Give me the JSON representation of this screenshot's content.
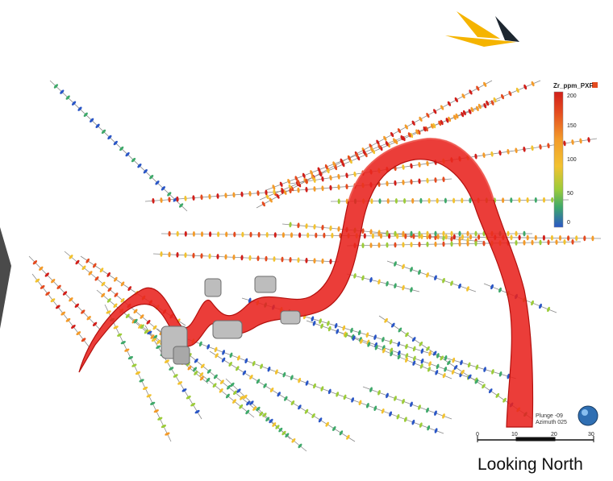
{
  "legend": {
    "title": "Zr_ppm_PXF",
    "ticks": [
      "200",
      "150",
      "100",
      "50",
      "0"
    ],
    "colors": [
      "#2a56c6",
      "#3fa96a",
      "#9ccc3a",
      "#f2c230",
      "#f39b2a",
      "#e44b1f",
      "#d11f1a"
    ]
  },
  "orientation": {
    "plunge": "Plunge -09",
    "azimuth": "Azimuth 025"
  },
  "scale_bar": {
    "labels": [
      "0",
      "10",
      "20",
      "30"
    ]
  },
  "caption": "Looking North",
  "colors": {
    "ribbon": "#e8221e",
    "logo_yellow": "#f5b400",
    "logo_dark": "#1d2630",
    "side_tab": "#4a4a4a"
  }
}
